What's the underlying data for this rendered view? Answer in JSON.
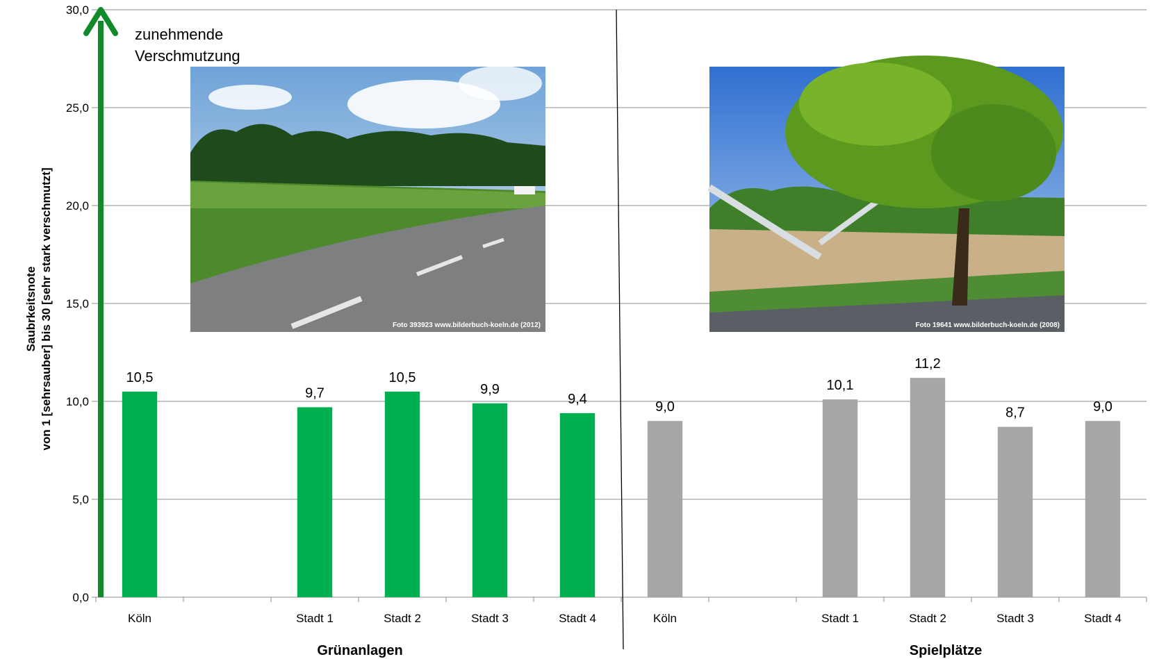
{
  "chart_data": {
    "type": "bar",
    "title": "",
    "ylabel_line1": "Saubrkeitsnote",
    "ylabel_line2": "von 1 [sehrsauber] bis 30 [sehr stark verschmutzt]",
    "ylim": [
      0,
      30
    ],
    "yticks": [
      "0,0",
      "5,0",
      "10,0",
      "15,0",
      "20,0",
      "25,0",
      "30,0"
    ],
    "annotation": [
      "zunehmende",
      "Verschmutzung"
    ],
    "grid": true,
    "groups": [
      {
        "name": "Grünanlagen",
        "color": "#00b050",
        "categories": [
          "Köln",
          "",
          "Stadt 1",
          "Stadt 2",
          "Stadt 3",
          "Stadt 4"
        ],
        "values": [
          10.5,
          null,
          9.7,
          10.5,
          9.9,
          9.4
        ],
        "labels": [
          "10,5",
          "",
          "9,7",
          "10,5",
          "9,9",
          "9,4"
        ],
        "photo_caption": "Foto 393923 www.bilderbuch-koeln.de (2012)"
      },
      {
        "name": "Spielplätze",
        "color": "#a6a6a6",
        "categories": [
          "Köln",
          "",
          "Stadt 1",
          "Stadt 2",
          "Stadt 3",
          "Stadt 4"
        ],
        "values": [
          9.0,
          null,
          10.1,
          11.2,
          8.7,
          9.0
        ],
        "labels": [
          "9,0",
          "",
          "10,1",
          "11,2",
          "8,7",
          "9,0"
        ],
        "photo_caption": "Foto 19641 www.bilderbuch-koeln.de (2008)"
      }
    ]
  }
}
